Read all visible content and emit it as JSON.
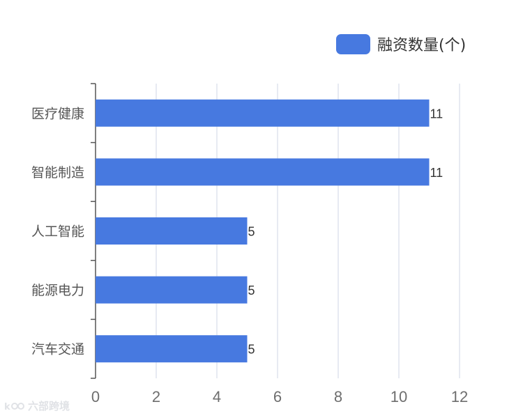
{
  "chart_data": {
    "type": "bar",
    "orientation": "horizontal",
    "categories": [
      "医疗健康",
      "智能制造",
      "人工智能",
      "能源电力",
      "汽车交通"
    ],
    "series": [
      {
        "name": "融资数量(个)",
        "values": [
          11,
          11,
          5,
          5,
          5
        ]
      }
    ],
    "xlim": [
      0,
      12
    ],
    "xticks": [
      0,
      2,
      4,
      6,
      8,
      10,
      12
    ],
    "title": "",
    "xlabel": "",
    "ylabel": "",
    "grid": "vertical",
    "legend": "top-right",
    "data_labels": true,
    "bar_color": "#4779e0",
    "grid_color": "#d7dde8",
    "axis_color": "#555555"
  },
  "watermark": "六部跨境"
}
